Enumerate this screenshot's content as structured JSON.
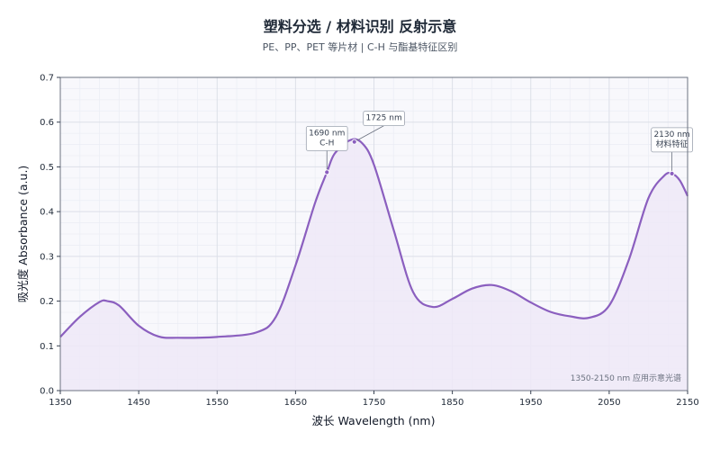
{
  "title": "塑料分选 / 材料识别 反射示意",
  "subtitle": "PE、PP、PET 等片材 | C-H 与酯基特征区别",
  "chart_data": {
    "type": "area",
    "xlabel": "波长 Wavelength (nm)",
    "ylabel": "吸光度 Absorbance (a.u.)",
    "xlim": [
      1350,
      2150
    ],
    "ylim": [
      0,
      0.7
    ],
    "x_ticks": [
      1350,
      1450,
      1550,
      1650,
      1750,
      1850,
      1950,
      2050,
      2150
    ],
    "y_ticks": [
      0.0,
      0.1,
      0.2,
      0.3,
      0.4,
      0.5,
      0.6,
      0.7
    ],
    "grid": true,
    "line_color": "#8b5fbf",
    "fill_color": "#efe9f7",
    "series": [
      {
        "name": "",
        "x": [
          1350,
          1375,
          1400,
          1410,
          1425,
          1450,
          1475,
          1500,
          1550,
          1600,
          1625,
          1650,
          1675,
          1690,
          1700,
          1720,
          1735,
          1750,
          1775,
          1800,
          1825,
          1850,
          1875,
          1900,
          1925,
          1950,
          1975,
          2000,
          2025,
          2050,
          2075,
          2100,
          2120,
          2130,
          2140,
          2150
        ],
        "y": [
          0.12,
          0.165,
          0.198,
          0.2,
          0.19,
          0.145,
          0.121,
          0.118,
          0.12,
          0.13,
          0.165,
          0.28,
          0.42,
          0.488,
          0.53,
          0.56,
          0.553,
          0.505,
          0.36,
          0.22,
          0.187,
          0.205,
          0.228,
          0.236,
          0.222,
          0.197,
          0.176,
          0.166,
          0.163,
          0.19,
          0.292,
          0.43,
          0.48,
          0.485,
          0.47,
          0.435
        ]
      }
    ],
    "annotations": [
      {
        "x": 1690,
        "y": 0.488,
        "lines": [
          "1690 nm",
          "C-H"
        ]
      },
      {
        "x": 1725,
        "y": 0.556,
        "lines": [
          "1725 nm"
        ]
      },
      {
        "x": 2130,
        "y": 0.485,
        "lines": [
          "2130 nm",
          "材料特征"
        ]
      }
    ],
    "note": "1350-2150 nm 应用示意光谱"
  }
}
